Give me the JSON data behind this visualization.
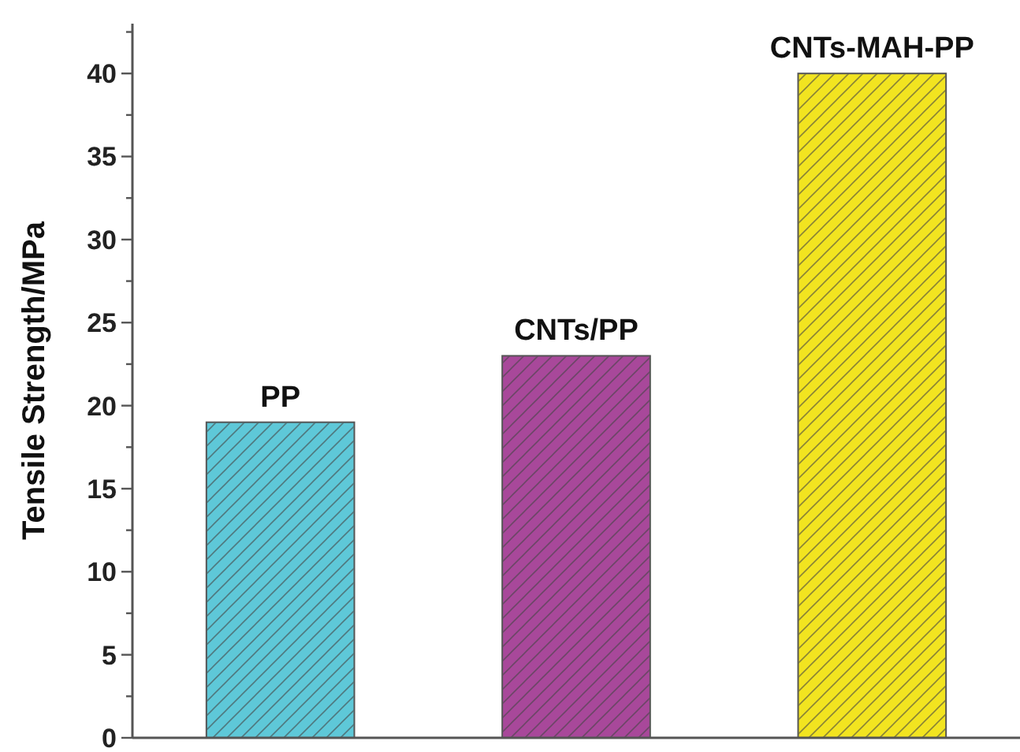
{
  "chart_data": {
    "type": "bar",
    "ylabel": "Tensile Strength/MPa",
    "categories": [
      "PP",
      "CNTs/PP",
      "CNTs-MAH-PP"
    ],
    "values": [
      19,
      23,
      40
    ],
    "colors": [
      "#5ec8d8",
      "#a8489a",
      "#f2e420"
    ],
    "ylim": [
      0,
      43
    ],
    "yticks": [
      0,
      {
        "value": 2.5,
        "label": null
      },
      5,
      {
        "value": 7.5,
        "label": null
      },
      10,
      {
        "value": 12.5,
        "label": null
      },
      15,
      {
        "value": 17.5,
        "label": null
      },
      20,
      {
        "value": 22.5,
        "label": null
      },
      25,
      {
        "value": 27.5,
        "label": null
      },
      30,
      {
        "value": 32.5,
        "label": null
      },
      35,
      {
        "value": 37.5,
        "label": null
      },
      40,
      {
        "value": 42.5,
        "label": null
      }
    ]
  }
}
